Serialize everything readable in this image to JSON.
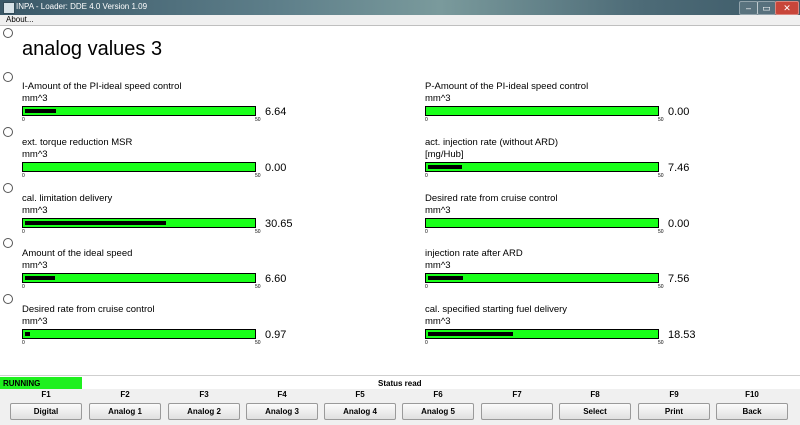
{
  "window": {
    "title": "INPA - Loader: DDE 4.0 Version 1.09",
    "minimize_icon": "minimize-icon",
    "maximize_icon": "maximize-icon",
    "close_icon": "close-icon",
    "min_glyph": "–",
    "max_glyph": "▭",
    "close_glyph": "✕"
  },
  "menu": {
    "about": "About..."
  },
  "page": {
    "title": "analog values 3"
  },
  "gauges": [
    {
      "label": "I-Amount of the PI-ideal speed control",
      "unit": "mm^3",
      "value": "6.64",
      "value_num": 6.64,
      "min": "0",
      "max": "50"
    },
    {
      "label": "ext. torque reduction MSR",
      "unit": "mm^3",
      "value": "0.00",
      "value_num": 0.0,
      "min": "0",
      "max": "50"
    },
    {
      "label": "cal. limitation delivery",
      "unit": "mm^3",
      "value": "30.65",
      "value_num": 30.65,
      "min": "0",
      "max": "50"
    },
    {
      "label": "Amount of the ideal speed",
      "unit": "mm^3",
      "value": "6.60",
      "value_num": 6.6,
      "min": "0",
      "max": "50"
    },
    {
      "label": "Desired rate from cruise control",
      "unit": "mm^3",
      "value": "0.97",
      "value_num": 0.97,
      "min": "0",
      "max": "50"
    },
    {
      "label": "P-Amount of the PI-ideal speed control",
      "unit": "mm^3",
      "value": "0.00",
      "value_num": 0.0,
      "min": "0",
      "max": "50"
    },
    {
      "label": "act. injection rate (without ARD)",
      "unit": "[mg/Hub]",
      "value": "7.46",
      "value_num": 7.46,
      "min": "0",
      "max": "50"
    },
    {
      "label": "Desired rate from cruise control",
      "unit": "mm^3",
      "value": "0.00",
      "value_num": 0.0,
      "min": "0",
      "max": "50"
    },
    {
      "label": "injection rate after ARD",
      "unit": "mm^3",
      "value": "7.56",
      "value_num": 7.56,
      "min": "0",
      "max": "50"
    },
    {
      "label": "cal. specified starting fuel delivery",
      "unit": "mm^3",
      "value": "18.53",
      "value_num": 18.53,
      "min": "0",
      "max": "50"
    }
  ],
  "status": {
    "running": "RUNNING",
    "text": "Status read"
  },
  "function_keys": [
    {
      "key": "F1",
      "label": "Digital"
    },
    {
      "key": "F2",
      "label": "Analog 1"
    },
    {
      "key": "F3",
      "label": "Analog 2"
    },
    {
      "key": "F4",
      "label": "Analog 3"
    },
    {
      "key": "F5",
      "label": "Analog 4"
    },
    {
      "key": "F6",
      "label": "Analog 5"
    },
    {
      "key": "F7",
      "label": ""
    },
    {
      "key": "F8",
      "label": "Select"
    },
    {
      "key": "F9",
      "label": "Print"
    },
    {
      "key": "F10",
      "label": "Back"
    }
  ],
  "colors": {
    "bar_green": "#19ff19",
    "bar_fill": "#000000",
    "running_green": "#1ff01f"
  }
}
